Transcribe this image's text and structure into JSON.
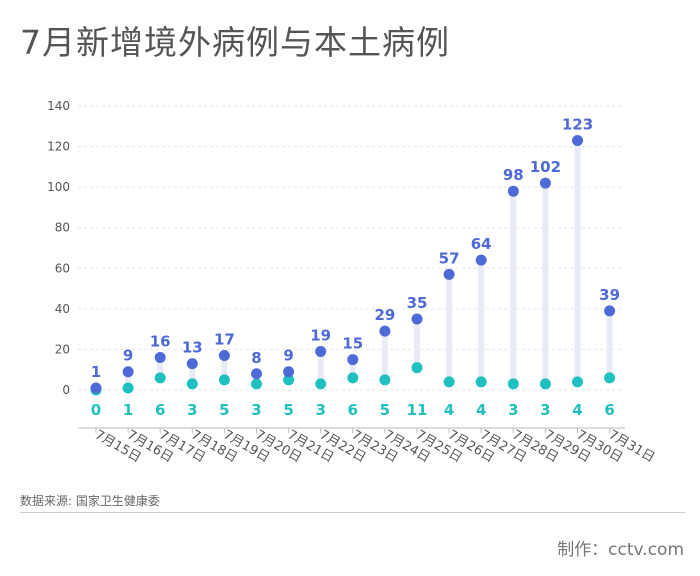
{
  "title": "7月新增境外病例与本土病例",
  "source": "数据来源: 国家卫生健康委",
  "credit": "制作：cctv.com",
  "colors": {
    "imported": "#4e6ad6",
    "local": "#1fc0c0",
    "stem": "#e8ebf5",
    "grid": "#e6e6e6",
    "axis": "#bbbbbb",
    "text": "#555555"
  },
  "chart_data": {
    "type": "scatter",
    "style": "dumbbell",
    "title": "7月新增境外病例与本土病例",
    "xlabel": "",
    "ylabel": "",
    "ylim": [
      0,
      140
    ],
    "yticks": [
      0,
      20,
      40,
      60,
      80,
      100,
      120,
      140
    ],
    "grid": true,
    "categories": [
      "7月15日",
      "7月16日",
      "7月17日",
      "7月18日",
      "7月19日",
      "7月20日",
      "7月21日",
      "7月22日",
      "7月23日",
      "7月24日",
      "7月25日",
      "7月26日",
      "7月27日",
      "7月28日",
      "7月29日",
      "7月30日",
      "7月31日"
    ],
    "series": [
      {
        "values": [
          1,
          9,
          16,
          13,
          17,
          8,
          9,
          19,
          15,
          29,
          35,
          57,
          64,
          98,
          102,
          123,
          39
        ],
        "color": "#4e6ad6"
      },
      {
        "values": [
          0,
          1,
          6,
          3,
          5,
          3,
          5,
          3,
          6,
          5,
          11,
          4,
          4,
          3,
          3,
          4,
          6
        ],
        "color": "#1fc0c0"
      }
    ]
  }
}
